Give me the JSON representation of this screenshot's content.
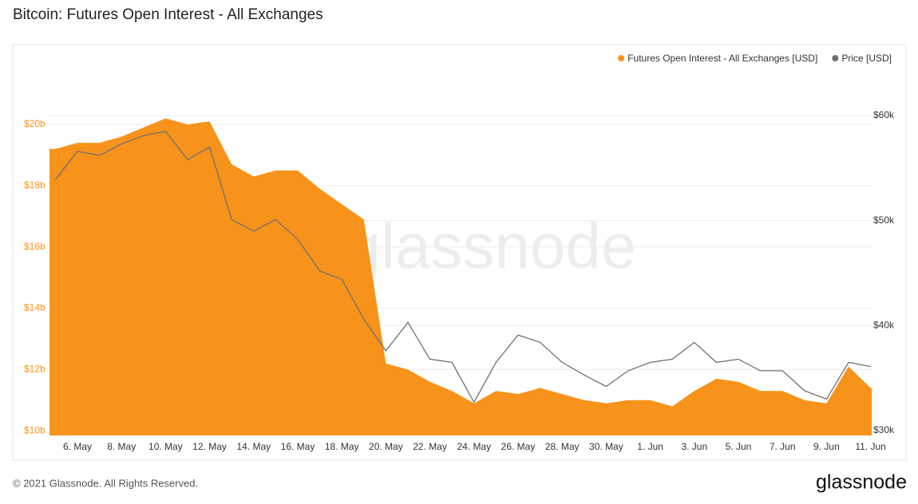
{
  "chart_data": {
    "type": "area_line",
    "title": "Bitcoin: Futures Open Interest - All Exchanges",
    "watermark": "glassnode",
    "footer": "© 2021 Glassnode. All Rights Reserved.",
    "logo": "glassnode",
    "categories": [
      null,
      "6. May",
      null,
      "8. May",
      null,
      "10. May",
      null,
      "12. May",
      null,
      "14. May",
      null,
      "16. May",
      null,
      "18. May",
      null,
      "20. May",
      null,
      "22. May",
      null,
      "24. May",
      null,
      "26. May",
      null,
      "28. May",
      null,
      "30. May",
      null,
      "1. Jun",
      null,
      "3. Jun",
      null,
      "5. Jun",
      null,
      "7. Jun",
      null,
      "9. Jun",
      null,
      "11. Jun"
    ],
    "series": [
      {
        "name": "Futures Open Interest - All Exchanges [USD]",
        "color": "#f7931a",
        "axis": "y",
        "values": [
          19.2,
          19.4,
          19.4,
          19.6,
          19.9,
          20.2,
          20.0,
          20.1,
          18.7,
          18.3,
          18.5,
          18.5,
          17.9,
          17.4,
          16.9,
          12.2,
          12.0,
          11.6,
          11.3,
          10.9,
          11.3,
          11.2,
          11.4,
          11.2,
          11.0,
          10.9,
          11.0,
          11.0,
          10.8,
          11.3,
          11.7,
          11.6,
          11.3,
          11.3,
          11.0,
          10.9,
          12.1,
          11.4
        ]
      },
      {
        "name": "Price [USD]",
        "color": "#707070",
        "axis": "y2",
        "values": [
          53.9,
          56.6,
          56.2,
          57.3,
          58.1,
          58.5,
          55.8,
          57.0,
          50.1,
          49.0,
          50.1,
          48.2,
          45.2,
          44.4,
          40.6,
          37.6,
          40.3,
          36.8,
          36.5,
          32.7,
          36.5,
          39.1,
          38.4,
          36.5,
          35.3,
          34.2,
          35.7,
          36.5,
          36.8,
          38.4,
          36.5,
          36.8,
          35.7,
          35.7,
          33.8,
          33.0,
          36.5,
          36.1
        ]
      }
    ],
    "ylim": [
      9.85,
      21.85
    ],
    "yticks": [
      {
        "value": 10,
        "label": "$10b"
      },
      {
        "value": 12,
        "label": "$12b"
      },
      {
        "value": 14,
        "label": "$14b"
      },
      {
        "value": 16,
        "label": "$16b"
      },
      {
        "value": 18,
        "label": "$18b"
      },
      {
        "value": 20,
        "label": "$20b"
      }
    ],
    "y2lim": [
      29.54,
      64.55
    ],
    "y2ticks": [
      {
        "value": 30,
        "label": "$30k"
      },
      {
        "value": 40,
        "label": "$40k"
      },
      {
        "value": 50,
        "label": "$50k"
      },
      {
        "value": 60,
        "label": "$60k"
      }
    ],
    "grid": true,
    "legend": "top-right"
  }
}
